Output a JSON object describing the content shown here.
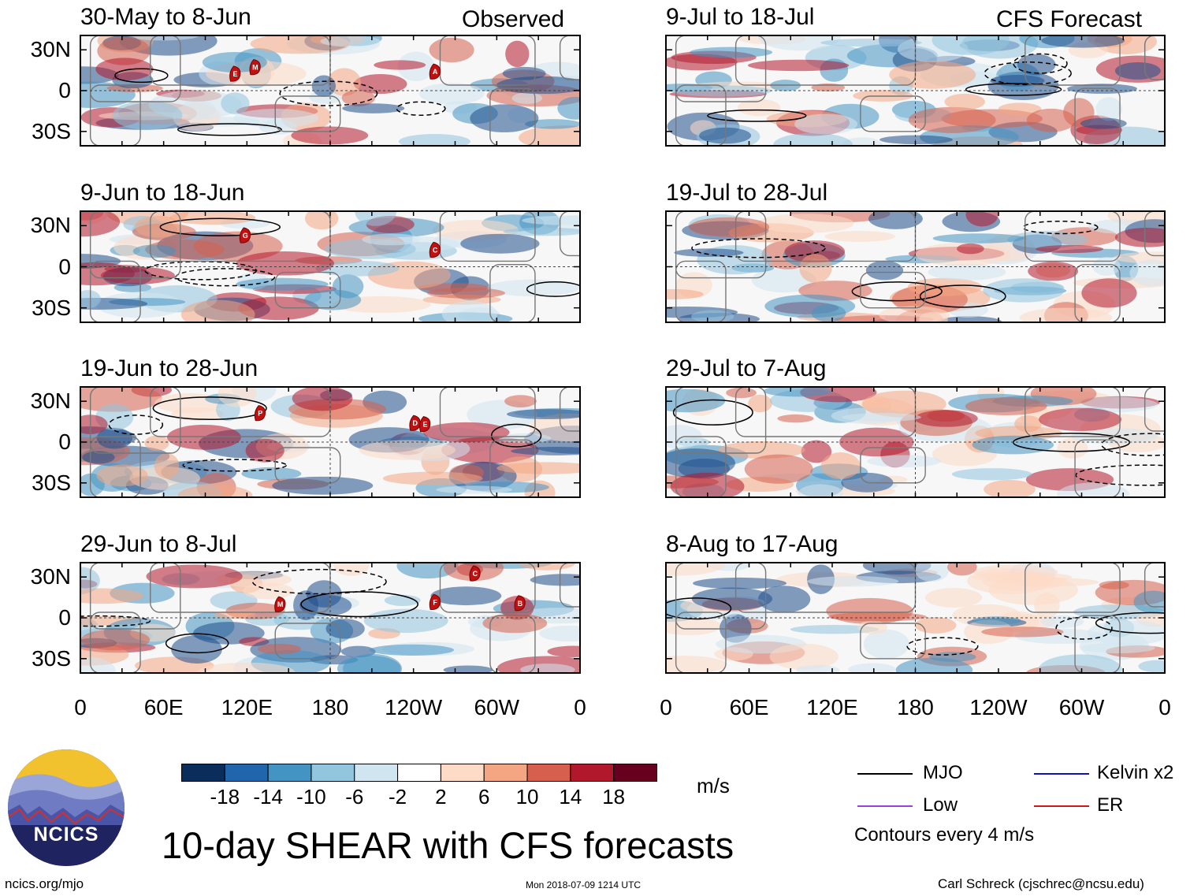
{
  "header": {
    "left_label": "Observed",
    "right_label": "CFS Forecast"
  },
  "observed_panels": [
    {
      "title": "30-May to 8-Jun",
      "storms": [
        "E",
        "M",
        "A"
      ]
    },
    {
      "title": "9-Jun to 18-Jun",
      "storms": [
        "G",
        "C"
      ]
    },
    {
      "title": "19-Jun to 28-Jun",
      "storms": [
        "P",
        "D",
        "E"
      ]
    },
    {
      "title": "29-Jun to 8-Jul",
      "storms": [
        "C",
        "M",
        "F",
        "B"
      ]
    }
  ],
  "forecast_panels": [
    {
      "title": "9-Jul to 18-Jul"
    },
    {
      "title": "19-Jul to 28-Jul"
    },
    {
      "title": "29-Jul to 7-Aug"
    },
    {
      "title": "8-Aug to 17-Aug"
    }
  ],
  "y_ticks": [
    "30N",
    "0",
    "30S"
  ],
  "x_ticks": [
    "0",
    "60E",
    "120E",
    "180",
    "120W",
    "60W",
    "0"
  ],
  "colorbar": {
    "colors": [
      "#0b2d5c",
      "#2166ac",
      "#4393c3",
      "#92c5de",
      "#d1e5f0",
      "#ffffff",
      "#fddbc7",
      "#f4a582",
      "#d6604d",
      "#b2182b",
      "#67001f"
    ],
    "labels": [
      "-18",
      "-14",
      "-10",
      "-6",
      "-2",
      "2",
      "6",
      "10",
      "14",
      "18"
    ],
    "unit": "m/s"
  },
  "legend": {
    "items": [
      {
        "label": "MJO",
        "color": "#000000"
      },
      {
        "label": "Kelvin x2",
        "color": "#1010c0"
      },
      {
        "label": "Low",
        "color": "#9a40e0"
      },
      {
        "label": "ER",
        "color": "#d01818"
      }
    ],
    "contour_note": "Contours every 4 m/s"
  },
  "logo": {
    "text": "NCICS"
  },
  "main_title": "10-day SHEAR with CFS forecasts",
  "footer": {
    "url": "ncics.org/mjo",
    "timestamp": "Mon 2018-07-09 1214 UTC",
    "credit": "Carl Schreck (cjschrec@ncsu.edu)"
  }
}
